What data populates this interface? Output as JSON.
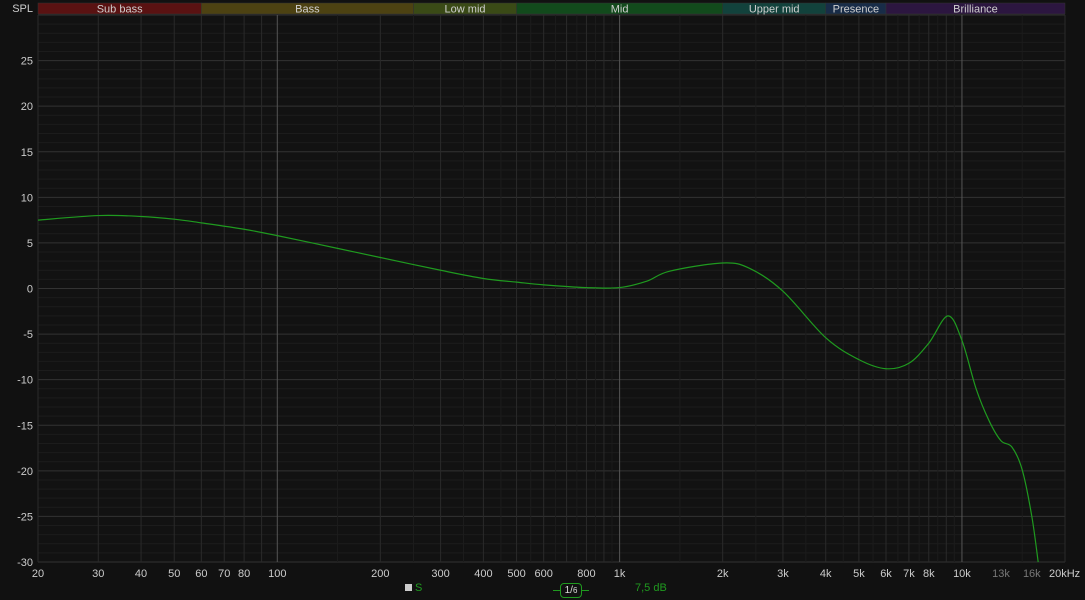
{
  "chart_data": {
    "type": "line",
    "ylabel": "SPL",
    "xscale": "log",
    "xlim": [
      20,
      20000
    ],
    "ylim": [
      -30,
      30
    ],
    "yticks": [
      25,
      20,
      15,
      10,
      5,
      0,
      -5,
      -10,
      -15,
      -20,
      -25,
      -30
    ],
    "xticks": [
      {
        "f": 20,
        "label": "20"
      },
      {
        "f": 30,
        "label": "30"
      },
      {
        "f": 40,
        "label": "40"
      },
      {
        "f": 50,
        "label": "50"
      },
      {
        "f": 60,
        "label": "60"
      },
      {
        "f": 70,
        "label": "70"
      },
      {
        "f": 80,
        "label": "80"
      },
      {
        "f": 100,
        "label": "100"
      },
      {
        "f": 200,
        "label": "200"
      },
      {
        "f": 300,
        "label": "300"
      },
      {
        "f": 400,
        "label": "400"
      },
      {
        "f": 500,
        "label": "500"
      },
      {
        "f": 600,
        "label": "600"
      },
      {
        "f": 800,
        "label": "800"
      },
      {
        "f": 1000,
        "label": "1k"
      },
      {
        "f": 2000,
        "label": "2k"
      },
      {
        "f": 3000,
        "label": "3k"
      },
      {
        "f": 4000,
        "label": "4k"
      },
      {
        "f": 5000,
        "label": "5k"
      },
      {
        "f": 6000,
        "label": "6k"
      },
      {
        "f": 7000,
        "label": "7k"
      },
      {
        "f": 8000,
        "label": "8k"
      },
      {
        "f": 10000,
        "label": "10k"
      },
      {
        "f": 13000,
        "label": "13k",
        "dim": true
      },
      {
        "f": 16000,
        "label": "16k",
        "dim": true
      },
      {
        "f": 20000,
        "label": "20kHz"
      }
    ],
    "grid": true,
    "bands": [
      {
        "label": "Sub bass",
        "from": 20,
        "to": 60,
        "color": "#5a1212"
      },
      {
        "label": "Bass",
        "from": 60,
        "to": 250,
        "color": "#4d4212"
      },
      {
        "label": "Low mid",
        "from": 250,
        "to": 500,
        "color": "#3a4a16"
      },
      {
        "label": "Mid",
        "from": 500,
        "to": 2000,
        "color": "#124a1c"
      },
      {
        "label": "Upper mid",
        "from": 2000,
        "to": 4000,
        "color": "#12423c"
      },
      {
        "label": "Presence",
        "from": 4000,
        "to": 6000,
        "color": "#182c48"
      },
      {
        "label": "Brilliance",
        "from": 6000,
        "to": 20000,
        "color": "#2c1640"
      }
    ],
    "series": [
      {
        "name": "S",
        "color": "#1f9a1f",
        "points": [
          [
            20,
            7.5
          ],
          [
            30,
            8.0
          ],
          [
            40,
            7.9
          ],
          [
            50,
            7.6
          ],
          [
            60,
            7.2
          ],
          [
            80,
            6.5
          ],
          [
            100,
            5.8
          ],
          [
            150,
            4.4
          ],
          [
            200,
            3.4
          ],
          [
            300,
            2.0
          ],
          [
            400,
            1.1
          ],
          [
            500,
            0.7
          ],
          [
            600,
            0.4
          ],
          [
            800,
            0.1
          ],
          [
            1000,
            0.1
          ],
          [
            1200,
            0.8
          ],
          [
            1400,
            1.9
          ],
          [
            2000,
            2.8
          ],
          [
            2400,
            2.2
          ],
          [
            3000,
            -0.3
          ],
          [
            4000,
            -5.4
          ],
          [
            5000,
            -7.8
          ],
          [
            6000,
            -8.8
          ],
          [
            7000,
            -8.2
          ],
          [
            8000,
            -6.0
          ],
          [
            9100,
            -3.0
          ],
          [
            10000,
            -5.7
          ],
          [
            11000,
            -11.0
          ],
          [
            12000,
            -14.5
          ],
          [
            13000,
            -16.7
          ],
          [
            14000,
            -17.4
          ],
          [
            15000,
            -19.9
          ],
          [
            16000,
            -25.0
          ],
          [
            16700,
            -30.0
          ]
        ]
      }
    ]
  },
  "legend": {
    "series_label": "S",
    "smoothing_label_num": "1",
    "smoothing_label_den": "6",
    "scale_label": "7,5 dB"
  }
}
